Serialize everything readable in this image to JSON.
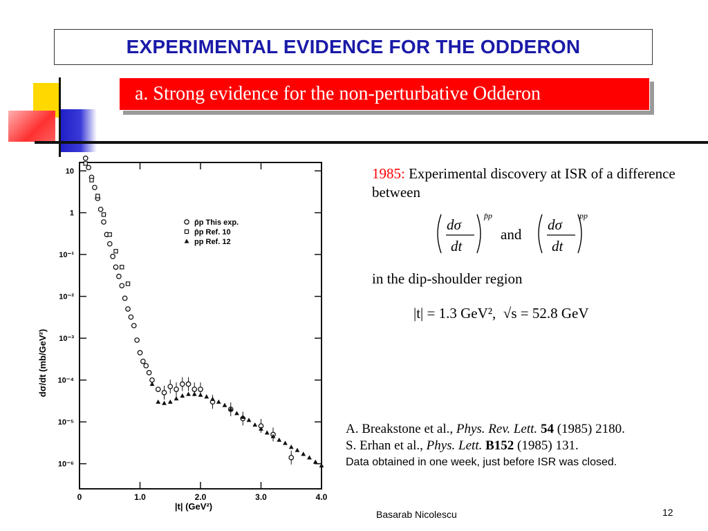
{
  "slide": {
    "title": "EXPERIMENTAL EVIDENCE FOR THE ODDERON",
    "subtitle": "a.  Strong evidence for the non-perturbative Odderon",
    "footer_author": "Basarab Nicolescu",
    "page_number": "12"
  },
  "text": {
    "year": "1985:",
    "discovery": "Experimental discovery at ISR of a difference between",
    "and": "and",
    "region": "in the dip-shoulder region",
    "eq_t": "|t| = 1.3 GeV²,",
    "eq_s": "√s = 52.8 GeV"
  },
  "references": {
    "ref1_authors": "A. Breakstone et al., ",
    "ref1_journal": "Phys. Rev. Lett.",
    "ref1_volume": "54",
    "ref1_rest": " (1985) 2180.",
    "ref2_authors": "S. Erhan et al., ",
    "ref2_journal": "Phys. Lett.",
    "ref2_volume": "B152",
    "ref2_rest": " (1985) 131.",
    "note": "Data obtained in one week, just before ISR was closed."
  },
  "colors": {
    "title": "#1a1aa8",
    "subtitle_bg": "#ff0000",
    "year": "#ff0000"
  },
  "chart_data": {
    "type": "scatter",
    "xlabel": "|t| (GeV²)",
    "ylabel": "dσ/dt  (mb/GeV²)",
    "x_ticks": [
      "0",
      "1.0",
      "2.0",
      "3.0",
      "4.0"
    ],
    "y_ticks": [
      "10",
      "1",
      "10⁻¹",
      "10⁻²",
      "10⁻³",
      "10⁻⁴",
      "10⁻⁵",
      "10⁻⁶"
    ],
    "xlim": [
      0,
      4
    ],
    "ylim_log10": [
      -6.6,
      1.2
    ],
    "y_scale": "log",
    "legend": [
      {
        "label": "p̄p   This exp.",
        "marker": "circle"
      },
      {
        "label": "p̄p   Ref. 10",
        "marker": "square"
      },
      {
        "label": "pp   Ref. 12",
        "marker": "triangle"
      }
    ],
    "series": [
      {
        "name": "p̄p   This exp.",
        "x": [
          0.1,
          0.15,
          0.2,
          0.25,
          0.3,
          0.35,
          0.4,
          0.45,
          0.5,
          0.55,
          0.6,
          0.65,
          0.7,
          0.75,
          0.8,
          0.85,
          0.9,
          0.95,
          1.0,
          1.05,
          1.1,
          1.15,
          1.2,
          1.3,
          1.4,
          1.5,
          1.6,
          1.7,
          1.8,
          1.9,
          2.0,
          2.2,
          2.5,
          2.7,
          3.0,
          3.2,
          3.5
        ],
        "y": [
          20,
          12,
          7,
          4,
          2.2,
          1.2,
          0.6,
          0.3,
          0.18,
          0.09,
          0.05,
          0.03,
          0.018,
          0.009,
          0.005,
          0.0032,
          0.002,
          0.0009,
          0.00045,
          0.00028,
          0.00022,
          0.00015,
          0.0001,
          6e-05,
          5e-05,
          7e-05,
          6e-05,
          8e-05,
          8e-05,
          6e-05,
          6e-05,
          3e-05,
          2e-05,
          1.2e-05,
          8e-06,
          5e-06,
          1.4e-06
        ]
      },
      {
        "name": "p̄p   Ref. 10",
        "x": [
          0.1,
          0.2,
          0.3,
          0.4,
          0.5,
          0.6,
          0.7,
          0.8
        ],
        "y": [
          15,
          6,
          2.5,
          0.9,
          0.3,
          0.12,
          0.05,
          0.02
        ]
      },
      {
        "name": "pp   Ref. 12",
        "x": [
          1.2,
          1.3,
          1.4,
          1.5,
          1.6,
          1.7,
          1.8,
          1.9,
          2.0,
          2.1,
          2.2,
          2.3,
          2.4,
          2.5,
          2.6,
          2.7,
          2.8,
          2.9,
          3.0,
          3.1,
          3.2,
          3.3,
          3.4,
          3.5,
          3.6,
          3.7,
          3.8,
          3.9,
          4.0
        ],
        "y": [
          8e-05,
          3e-05,
          2.8e-05,
          3e-05,
          3.6e-05,
          4.2e-05,
          4.6e-05,
          4.6e-05,
          4.4e-05,
          4e-05,
          3.5e-05,
          3e-05,
          2.5e-05,
          2e-05,
          1.6e-05,
          1.3e-05,
          1.1e-05,
          8.5e-06,
          6.8e-06,
          5.5e-06,
          4.5e-06,
          3.7e-06,
          3.1e-06,
          2.5e-06,
          2.1e-06,
          1.7e-06,
          1.4e-06,
          1.1e-06,
          9e-07
        ]
      }
    ]
  }
}
